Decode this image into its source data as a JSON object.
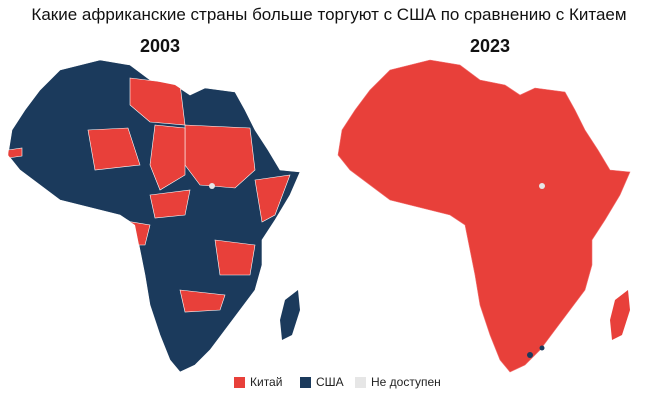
{
  "title": "Какие африканские страны больше торгуют с США по сравнению с Китаем",
  "maps": [
    {
      "year": "2003"
    },
    {
      "year": "2023"
    }
  ],
  "legend": [
    {
      "label": "Китай",
      "color": "#e8403a"
    },
    {
      "label": "США",
      "color": "#1b3a5c"
    },
    {
      "label": "Не доступен",
      "color": "#e6e6e6"
    }
  ]
}
